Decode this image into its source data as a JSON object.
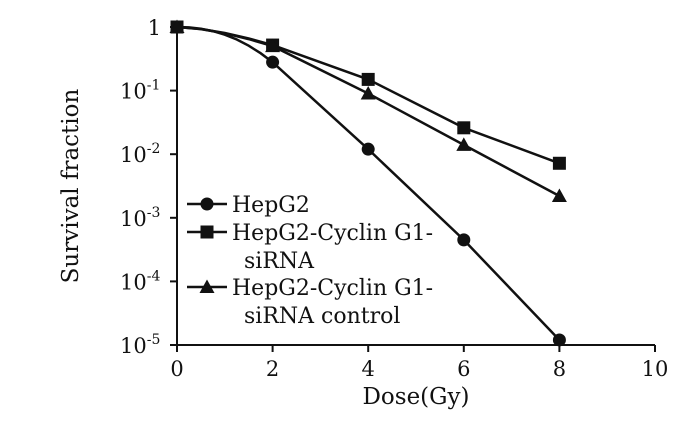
{
  "chart_data": {
    "type": "line",
    "title": "",
    "xlabel": "Dose(Gy)",
    "ylabel": "Survival fraction",
    "xlim": [
      0,
      10
    ],
    "ylim": [
      1e-05,
      1
    ],
    "yscale": "log",
    "x_ticks": [
      {
        "value": 0,
        "label": "0"
      },
      {
        "value": 2,
        "label": "2"
      },
      {
        "value": 4,
        "label": "4"
      },
      {
        "value": 6,
        "label": "6"
      },
      {
        "value": 8,
        "label": "8"
      },
      {
        "value": 10,
        "label": "10"
      }
    ],
    "y_ticks": [
      {
        "exp": 0,
        "label": "1",
        "base": "",
        "sup": ""
      },
      {
        "exp": -1,
        "label": "",
        "base": "10",
        "sup": "-1"
      },
      {
        "exp": -2,
        "label": "",
        "base": "10",
        "sup": "-2"
      },
      {
        "exp": -3,
        "label": "",
        "base": "10",
        "sup": "-3"
      },
      {
        "exp": -4,
        "label": "",
        "base": "10",
        "sup": "-4"
      },
      {
        "exp": -5,
        "label": "",
        "base": "10",
        "sup": "-5"
      }
    ],
    "legend_position": "bottom-left",
    "series": [
      {
        "name": "HepG2",
        "legend_lines": [
          "HepG2"
        ],
        "marker": "circle",
        "x": [
          0,
          2,
          4,
          6,
          8
        ],
        "values": [
          1,
          0.28,
          0.012,
          0.00045,
          1.2e-05
        ]
      },
      {
        "name": "HepG2-Cyclin G1-siRNA",
        "legend_lines": [
          "HepG2-Cyclin G1-",
          "siRNA"
        ],
        "marker": "square",
        "x": [
          0,
          2,
          4,
          6,
          8
        ],
        "values": [
          1,
          0.52,
          0.15,
          0.026,
          0.0072
        ]
      },
      {
        "name": "HepG2-Cyclin G1-siRNA control",
        "legend_lines": [
          "HepG2-Cyclin G1-",
          "siRNA control"
        ],
        "marker": "triangle",
        "x": [
          0,
          2,
          4,
          6,
          8
        ],
        "values": [
          1,
          0.5,
          0.09,
          0.014,
          0.0022
        ]
      }
    ]
  }
}
